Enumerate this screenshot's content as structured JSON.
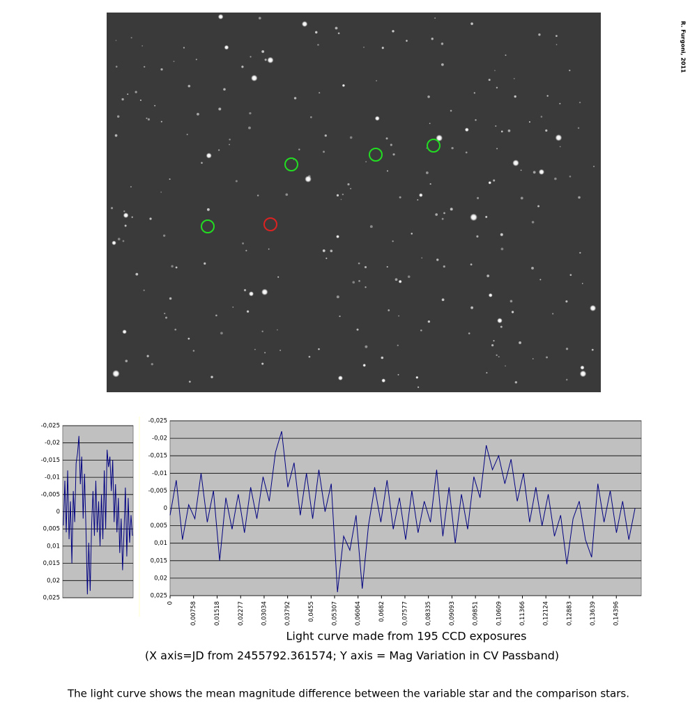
{
  "image": {
    "credit": "R. Furgoni, 2011"
  },
  "chart_data": [
    {
      "type": "line",
      "color": "#000080",
      "ylim": [
        0.025,
        -0.025
      ],
      "grid": true,
      "yticks": [
        {
          "value": -0.025,
          "label": "-0,025"
        },
        {
          "value": -0.02,
          "label": "-0,02"
        },
        {
          "value": -0.015,
          "label": "-0,015"
        },
        {
          "value": -0.01,
          "label": "-0,01"
        },
        {
          "value": -0.005,
          "label": "-0,005"
        },
        0,
        {
          "value": 0.005,
          "label": "0,005"
        },
        {
          "value": 0.01,
          "label": "0,01"
        },
        {
          "value": 0.015,
          "label": "0,015"
        },
        {
          "value": 0.02,
          "label": "0,02"
        },
        {
          "value": 0.025,
          "label": "0,025"
        }
      ],
      "values": [
        0.004,
        -0.009,
        0.006,
        -0.012,
        0.008,
        -0.003,
        0.015,
        -0.006,
        0.003,
        -0.014,
        -0.017,
        -0.022,
        -0.008,
        -0.016,
        0.002,
        -0.011,
        0.005,
        0.024,
        0.009,
        0.023,
        0.004,
        -0.006,
        0.007,
        -0.009,
        0.006,
        -0.003,
        0.01,
        -0.005,
        0.008,
        -0.012,
        0.005,
        -0.018,
        -0.013,
        -0.016,
        -0.006,
        -0.015,
        0.003,
        -0.008,
        0.006,
        -0.004,
        0.012,
        0.002,
        0.017,
        0.006,
        -0.007,
        0.013,
        -0.004,
        0.009,
        0.001,
        0.007
      ]
    },
    {
      "type": "line",
      "color": "#000080",
      "xlim": [
        0,
        0.152
      ],
      "ylim": [
        0.025,
        -0.025
      ],
      "grid": true,
      "yticks": [
        {
          "value": -0.025,
          "label": "-0,025"
        },
        {
          "value": -0.02,
          "label": "-0,02"
        },
        {
          "value": -0.015,
          "label": "-0,015"
        },
        {
          "value": -0.01,
          "label": "-0,01"
        },
        {
          "value": -0.005,
          "label": "-0,005"
        },
        0,
        {
          "value": 0.005,
          "label": "0,005"
        },
        {
          "value": 0.01,
          "label": "0,01"
        },
        {
          "value": 0.015,
          "label": "0,015"
        },
        {
          "value": 0.02,
          "label": "0,02"
        },
        {
          "value": 0.025,
          "label": "0,025"
        }
      ],
      "xticks": [
        0,
        {
          "value": 0.00758,
          "label": "0,00758"
        },
        {
          "value": 0.01518,
          "label": "0,01518"
        },
        {
          "value": 0.02277,
          "label": "0,02277"
        },
        {
          "value": 0.03034,
          "label": "0,03034"
        },
        {
          "value": 0.03792,
          "label": "0,03792"
        },
        {
          "value": 0.0455,
          "label": "0,0455"
        },
        {
          "value": 0.05307,
          "label": "0,05307"
        },
        {
          "value": 0.06064,
          "label": "0,06064"
        },
        {
          "value": 0.0682,
          "label": "0,0682"
        },
        {
          "value": 0.07577,
          "label": "0,07577"
        },
        {
          "value": 0.08335,
          "label": "0,08335"
        },
        {
          "value": 0.09093,
          "label": "0,09093"
        },
        {
          "value": 0.09851,
          "label": "0,09851"
        },
        {
          "value": 0.10609,
          "label": "0,10609"
        },
        {
          "value": 0.11366,
          "label": "0,11366"
        },
        {
          "value": 0.12124,
          "label": "0,12124"
        },
        {
          "value": 0.12883,
          "label": "0,12883"
        },
        {
          "value": 0.13639,
          "label": "0,13639"
        },
        {
          "value": 0.14396,
          "label": "0,14396"
        }
      ],
      "x": [
        0,
        0.002,
        0.004,
        0.006,
        0.008,
        0.01,
        0.012,
        0.014,
        0.016,
        0.018,
        0.02,
        0.022,
        0.024,
        0.026,
        0.028,
        0.03,
        0.032,
        0.034,
        0.036,
        0.038,
        0.04,
        0.042,
        0.044,
        0.046,
        0.048,
        0.05,
        0.052,
        0.054,
        0.056,
        0.058,
        0.06,
        0.062,
        0.064,
        0.066,
        0.068,
        0.07,
        0.072,
        0.074,
        0.076,
        0.078,
        0.08,
        0.082,
        0.084,
        0.086,
        0.088,
        0.09,
        0.092,
        0.094,
        0.096,
        0.098,
        0.1,
        0.102,
        0.104,
        0.106,
        0.108,
        0.11,
        0.112,
        0.114,
        0.116,
        0.118,
        0.12,
        0.122,
        0.124,
        0.126,
        0.128,
        0.13,
        0.132,
        0.134,
        0.136,
        0.138,
        0.14,
        0.142,
        0.144,
        0.146,
        0.148,
        0.15
      ],
      "values": [
        0.002,
        -0.008,
        0.009,
        -0.001,
        0.003,
        -0.01,
        0.004,
        -0.005,
        0.015,
        -0.003,
        0.006,
        -0.004,
        0.007,
        -0.006,
        0.003,
        -0.009,
        -0.002,
        -0.016,
        -0.022,
        -0.006,
        -0.013,
        0.002,
        -0.01,
        0.003,
        -0.011,
        0.001,
        -0.007,
        0.024,
        0.008,
        0.012,
        0.002,
        0.023,
        0.005,
        -0.006,
        0.004,
        -0.008,
        0.006,
        -0.003,
        0.009,
        -0.005,
        0.007,
        -0.002,
        0.004,
        -0.011,
        0.008,
        -0.006,
        0.01,
        -0.004,
        0.006,
        -0.009,
        -0.003,
        -0.018,
        -0.011,
        -0.015,
        -0.007,
        -0.014,
        -0.002,
        -0.01,
        0.004,
        -0.006,
        0.005,
        -0.004,
        0.008,
        0.002,
        0.016,
        0.003,
        -0.002,
        0.009,
        0.014,
        -0.007,
        0.004,
        -0.005,
        0.007,
        -0.002,
        0.009,
        0
      ]
    }
  ],
  "caption": [
    "Light curve made from 195 CCD exposures",
    "(X axis=JD from 2455792.361574; Y axis = Mag Variation in CV Passband)"
  ],
  "note": "The light curve shows the mean magnitude difference between the variable star and the comparison stars."
}
